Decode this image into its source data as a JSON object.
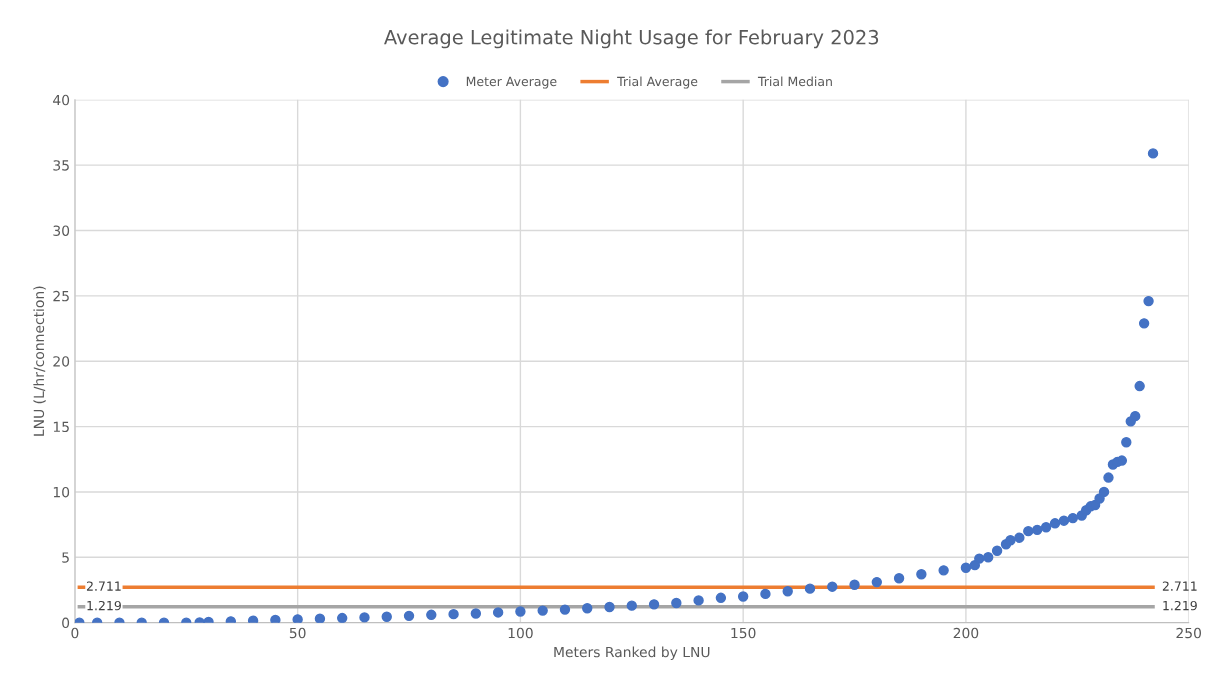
{
  "chart_data": {
    "type": "scatter",
    "title": "Average Legitimate Night Usage for February 2023",
    "xlabel": "Meters Ranked by LNU",
    "ylabel": "LNU (L/hr/connection)",
    "xlim": [
      0,
      250
    ],
    "xticks": [
      0,
      50,
      100,
      150,
      200,
      250
    ],
    "ylim": [
      0,
      40
    ],
    "yticks": [
      0,
      5,
      10,
      15,
      20,
      25,
      30,
      35,
      40
    ],
    "grid": true,
    "legend": "top",
    "series": [
      {
        "name": "Meter Average",
        "marker": "circle",
        "color": "#4472c4",
        "x": [
          1,
          5,
          10,
          15,
          20,
          25,
          28,
          30,
          35,
          40,
          45,
          50,
          55,
          60,
          65,
          70,
          75,
          80,
          85,
          90,
          95,
          100,
          105,
          110,
          115,
          120,
          125,
          130,
          135,
          140,
          145,
          150,
          155,
          160,
          165,
          170,
          175,
          180,
          185,
          190,
          195,
          200,
          202,
          203,
          205,
          207,
          209,
          210,
          212,
          214,
          216,
          218,
          220,
          222,
          224,
          226,
          227,
          228,
          229,
          230,
          231,
          232,
          233,
          234,
          235,
          236,
          237,
          238,
          239,
          240,
          241,
          242
        ],
        "values": [
          0.0,
          0.0,
          0.0,
          0.0,
          0.0,
          0.0,
          0.02,
          0.05,
          0.1,
          0.15,
          0.2,
          0.25,
          0.3,
          0.35,
          0.4,
          0.45,
          0.52,
          0.6,
          0.65,
          0.7,
          0.78,
          0.85,
          0.92,
          1.0,
          1.1,
          1.2,
          1.3,
          1.4,
          1.5,
          1.7,
          1.9,
          2.0,
          2.2,
          2.4,
          2.6,
          2.75,
          2.9,
          3.1,
          3.4,
          3.7,
          4.0,
          4.2,
          4.4,
          4.9,
          5.0,
          5.5,
          6.0,
          6.3,
          6.5,
          7.0,
          7.1,
          7.3,
          7.6,
          7.8,
          8.0,
          8.2,
          8.6,
          8.9,
          9.0,
          9.5,
          10.0,
          11.1,
          12.1,
          12.3,
          12.4,
          13.8,
          15.4,
          15.8,
          18.1,
          22.9,
          24.6,
          35.9
        ]
      },
      {
        "name": "Trial Average",
        "type": "line",
        "marker": "none",
        "color": "#ed7d31",
        "x": [
          1,
          242
        ],
        "values": [
          2.711,
          2.711
        ],
        "value_labels": [
          "2.711",
          "2.711"
        ]
      },
      {
        "name": "Trial Median",
        "type": "line",
        "marker": "none",
        "color": "#a5a5a5",
        "x": [
          1,
          242
        ],
        "values": [
          1.219,
          1.219
        ],
        "value_labels": [
          "1.219",
          "1.219"
        ]
      }
    ]
  }
}
